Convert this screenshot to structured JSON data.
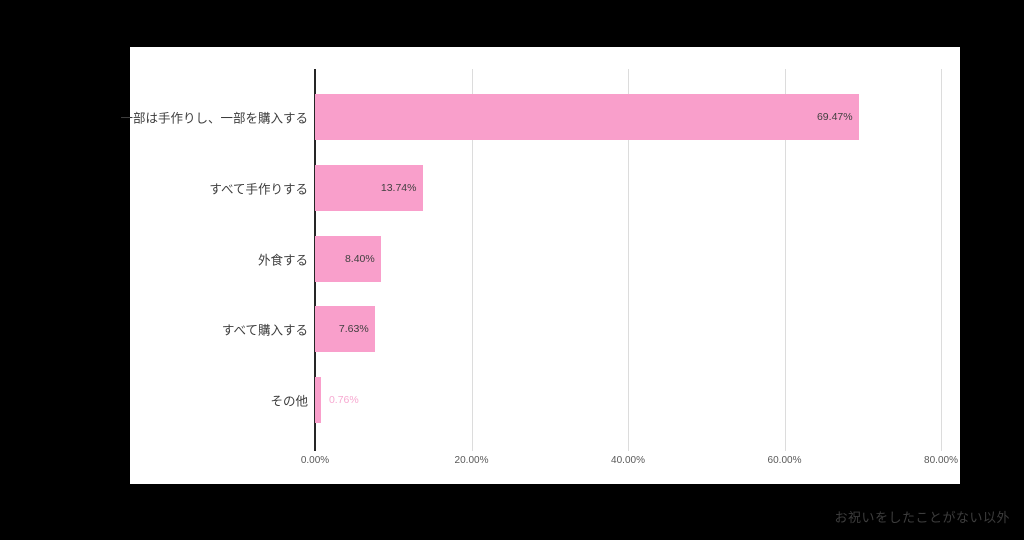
{
  "chart_data": {
    "type": "bar",
    "orientation": "horizontal",
    "title": "",
    "xlabel": "",
    "ylabel": "",
    "categories": [
      "一部は手作りし、一部を購入する",
      "すべて手作りする",
      "外食する",
      "すべて購入する",
      "その他"
    ],
    "values": [
      69.47,
      13.74,
      8.4,
      7.63,
      0.76
    ],
    "value_labels": [
      "69.47%",
      "13.74%",
      "8.40%",
      "7.63%",
      "0.76%"
    ],
    "x_ticks": [
      "0.00%",
      "20.00%",
      "40.00%",
      "60.00%",
      "80.00%"
    ],
    "x_tick_values": [
      0,
      20,
      40,
      60,
      80
    ],
    "xlim": [
      0,
      80
    ],
    "grid": true,
    "legend": "none"
  },
  "footer": {
    "note": "お祝いをしたことがない以外"
  },
  "colors": {
    "page_background": "#000000",
    "panel_background": "#FFFFFF",
    "bar": "#F99FCB",
    "bar_label_inside": "#404040",
    "bar_label_outside": "#F7A9D1",
    "axis_line": "#262626",
    "gridline": "#DCDCDC",
    "tick_label": "#595959",
    "category_label": "#3D3D3D",
    "footer_text": "#3D3D3D"
  }
}
